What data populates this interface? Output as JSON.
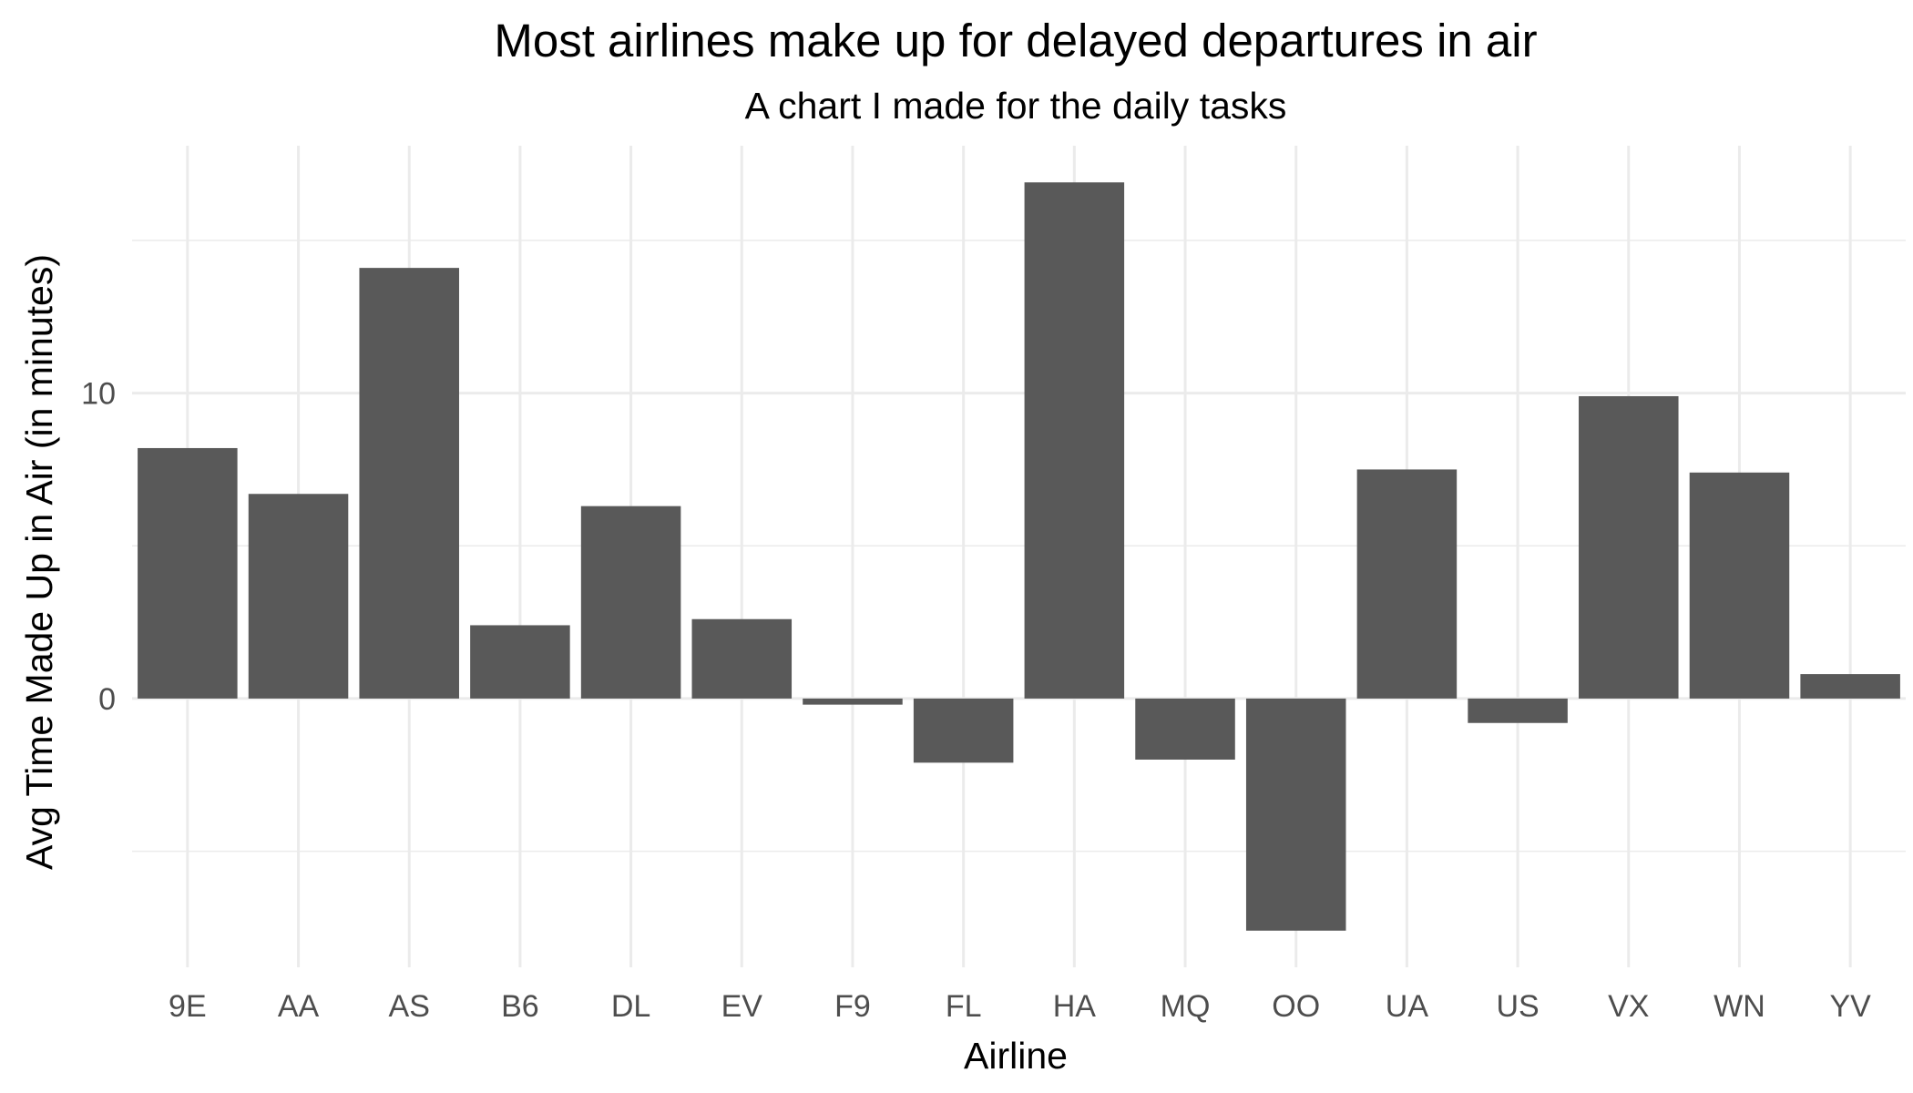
{
  "chart_data": {
    "type": "bar",
    "title": "Most airlines make up for delayed departures in air",
    "subtitle": "A chart I made for the daily tasks",
    "xlabel": "Airline",
    "ylabel": "Avg Time Made Up in Air (in minutes)",
    "categories": [
      "9E",
      "AA",
      "AS",
      "B6",
      "DL",
      "EV",
      "F9",
      "FL",
      "HA",
      "MQ",
      "OO",
      "UA",
      "US",
      "VX",
      "WN",
      "YV"
    ],
    "values": [
      8.2,
      6.7,
      14.1,
      2.4,
      6.3,
      2.6,
      -0.2,
      -2.1,
      16.9,
      -2.0,
      -7.6,
      7.5,
      -0.8,
      9.9,
      7.4,
      0.8
    ],
    "ylim": [
      -8.8,
      18.1
    ],
    "yticks": [
      0,
      10
    ],
    "yticks_minor": [
      -5,
      5,
      15
    ],
    "grid": true,
    "bar_color": "#595959",
    "grid_color": "#ebebeb",
    "tick_label_color": "#4d4d4d"
  }
}
